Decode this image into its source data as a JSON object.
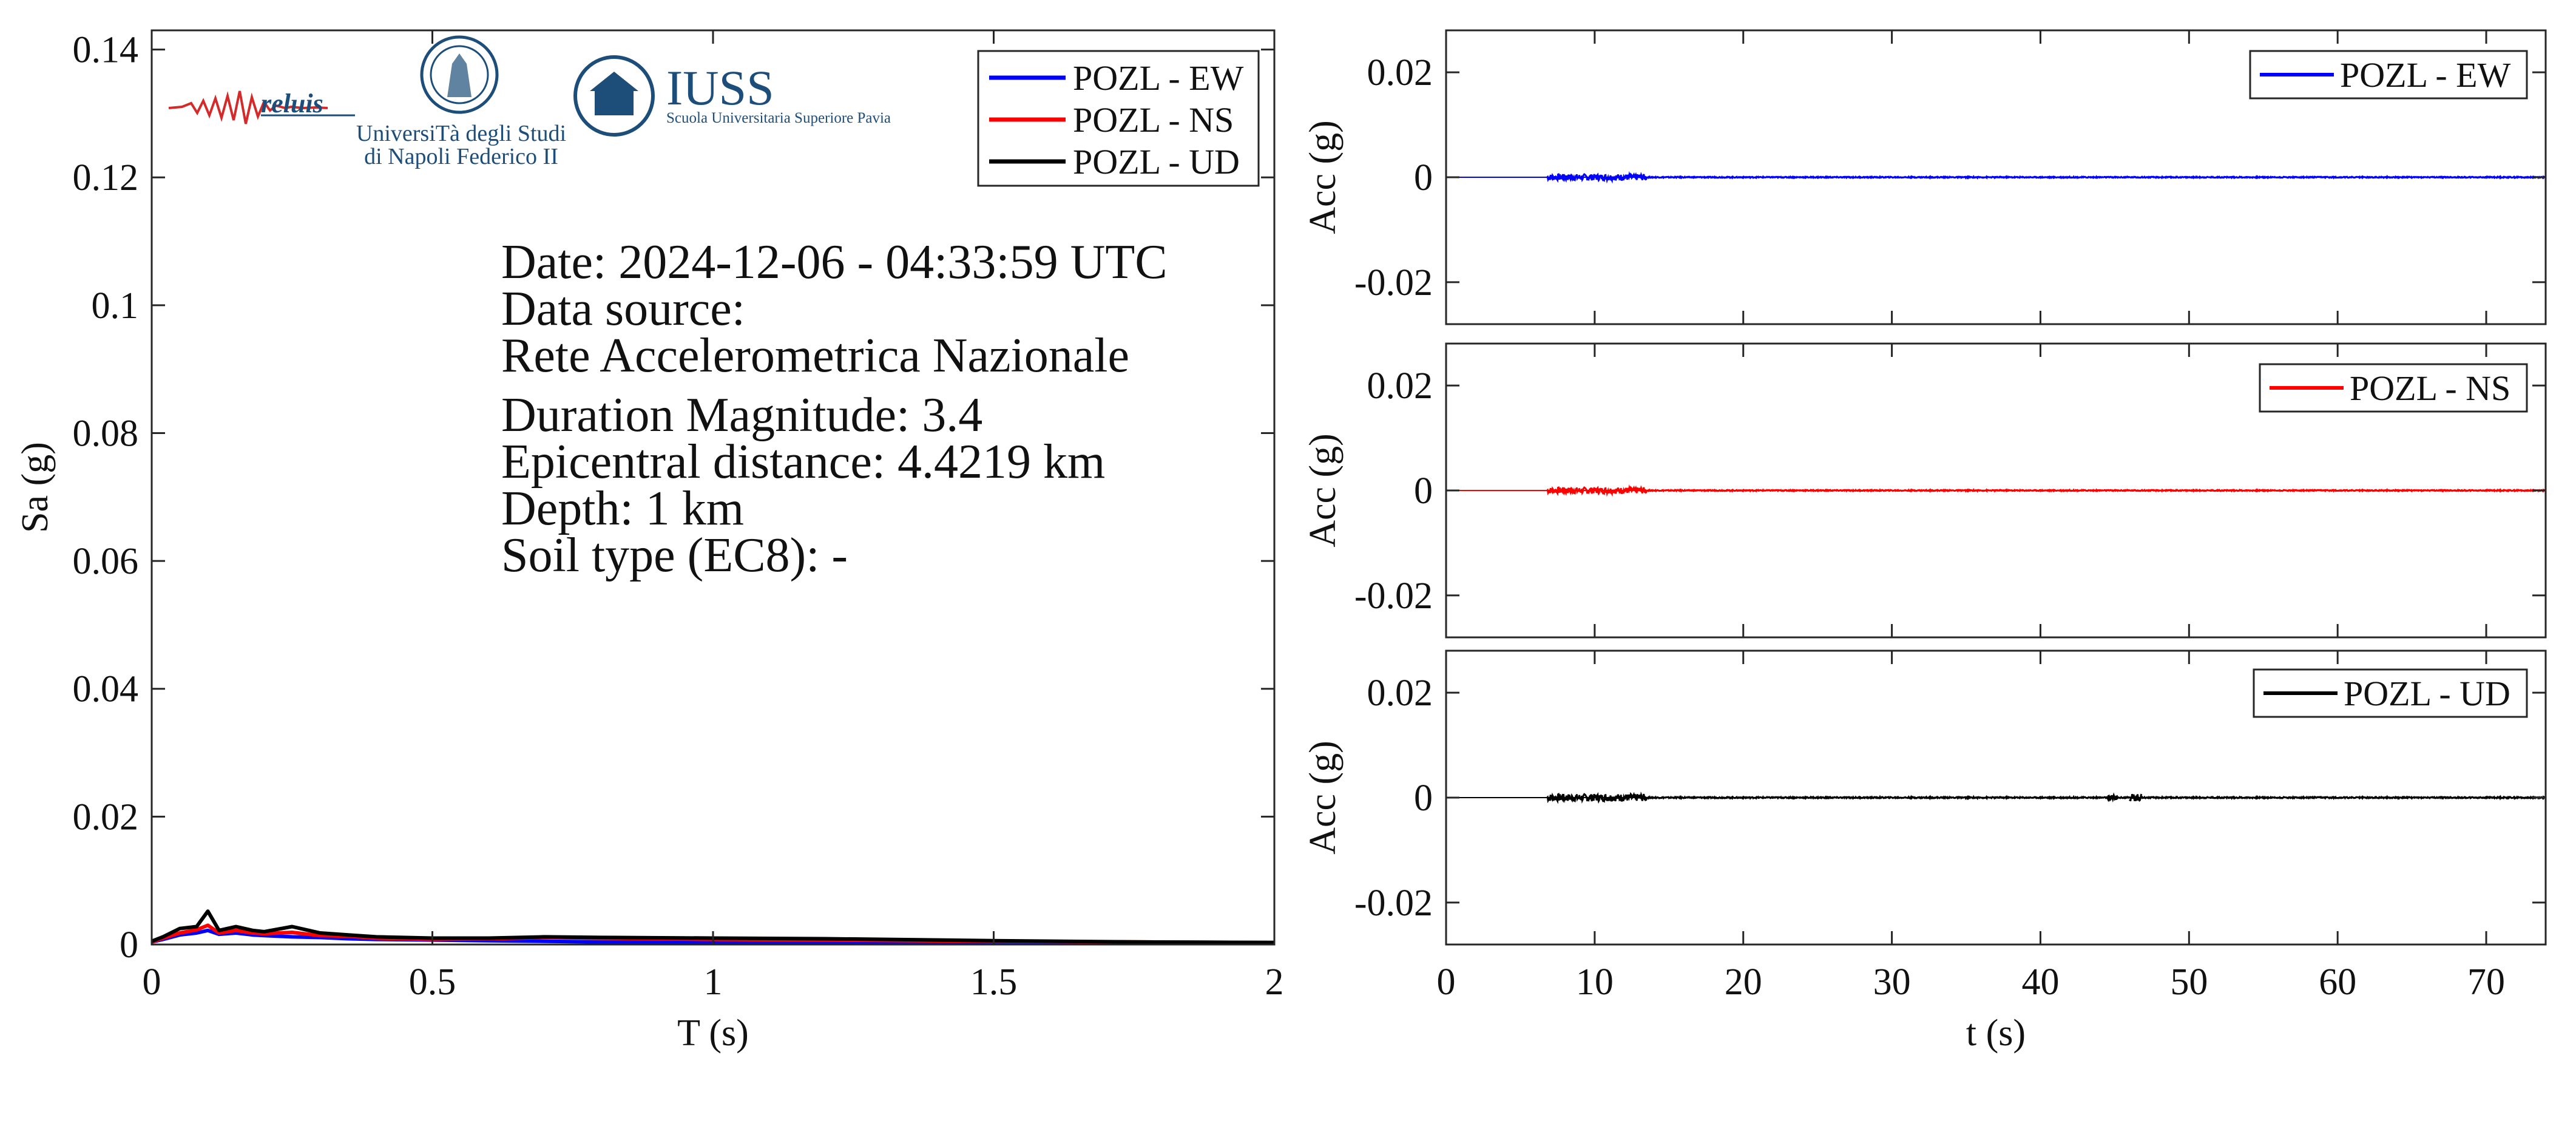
{
  "logos": {
    "reluis": "reluis",
    "unina_line1": "UniversiTà degli Studi",
    "unina_line2": "di Napoli Federico II",
    "iuss_title": "IUSS",
    "iuss_subtitle": "Scuola Universitaria Superiore Pavia"
  },
  "info": {
    "date": "Date: 2024-12-06 - 04:33:59 UTC",
    "source_label": "Data source:",
    "source_value": "Rete Accelerometrica Nazionale",
    "magnitude": "Duration Magnitude: 3.4",
    "distance": "Epicentral distance: 4.4219 km",
    "depth": "Depth: 1 km",
    "soil": "Soil type (EC8): -"
  },
  "colors": {
    "EW": "#0000ff",
    "NS": "#ff0000",
    "UD": "#000000",
    "axis": "#262626"
  },
  "chart_data": [
    {
      "type": "line",
      "xlabel": "T (s)",
      "ylabel": "Sa (g)",
      "xlim": [
        0,
        2
      ],
      "ylim": [
        0,
        0.143
      ],
      "xticks": [
        0,
        0.5,
        1,
        1.5,
        2
      ],
      "xtick_labels": [
        "0",
        "0.5",
        "1",
        "1.5",
        "2"
      ],
      "yticks": [
        0,
        0.02,
        0.04,
        0.06,
        0.08,
        0.1,
        0.12,
        0.14
      ],
      "ytick_labels": [
        "0",
        "0.02",
        "0.04",
        "0.06",
        "0.08",
        "0.1",
        "0.12",
        "0.14"
      ],
      "grid": false,
      "legend_position": "top-right",
      "series": [
        {
          "name": "POZL - EW",
          "color": "#0000ff",
          "x": [
            0,
            0.02,
            0.05,
            0.08,
            0.1,
            0.12,
            0.15,
            0.18,
            0.2,
            0.25,
            0.3,
            0.35,
            0.4,
            0.5,
            0.6,
            0.7,
            0.8,
            1.0,
            1.2,
            1.5,
            1.75,
            2.0
          ],
          "y": [
            0.0004,
            0.0008,
            0.0015,
            0.0018,
            0.0022,
            0.0016,
            0.0018,
            0.0015,
            0.0014,
            0.0012,
            0.0011,
            0.0009,
            0.0008,
            0.0007,
            0.0006,
            0.0005,
            0.0004,
            0.0004,
            0.0003,
            0.0003,
            0.0002,
            0.0002
          ]
        },
        {
          "name": "POZL - NS",
          "color": "#ff0000",
          "x": [
            0,
            0.02,
            0.05,
            0.08,
            0.1,
            0.12,
            0.15,
            0.18,
            0.2,
            0.25,
            0.3,
            0.35,
            0.4,
            0.5,
            0.6,
            0.7,
            0.8,
            1.0,
            1.2,
            1.5,
            1.75,
            2.0
          ],
          "y": [
            0.0004,
            0.001,
            0.0018,
            0.0023,
            0.003,
            0.0018,
            0.0022,
            0.0018,
            0.0017,
            0.0019,
            0.0014,
            0.0013,
            0.001,
            0.0008,
            0.0009,
            0.0011,
            0.001,
            0.0008,
            0.0007,
            0.0005,
            0.0004,
            0.0003
          ]
        },
        {
          "name": "POZL - UD",
          "color": "#000000",
          "x": [
            0,
            0.02,
            0.05,
            0.08,
            0.1,
            0.12,
            0.15,
            0.18,
            0.2,
            0.25,
            0.3,
            0.35,
            0.4,
            0.5,
            0.6,
            0.7,
            0.8,
            1.0,
            1.2,
            1.5,
            1.75,
            2.0
          ],
          "y": [
            0.0005,
            0.0012,
            0.0025,
            0.0028,
            0.0052,
            0.0022,
            0.0028,
            0.0022,
            0.002,
            0.0028,
            0.0018,
            0.0015,
            0.0012,
            0.001,
            0.001,
            0.0012,
            0.0011,
            0.001,
            0.0009,
            0.0006,
            0.0004,
            0.0003
          ]
        }
      ]
    },
    {
      "type": "line",
      "xlabel": "",
      "ylabel": "Acc (g)",
      "xlim": [
        0,
        74
      ],
      "ylim": [
        -0.028,
        0.028
      ],
      "yticks": [
        -0.02,
        0,
        0.02
      ],
      "ytick_labels": [
        "-0.02",
        "0",
        "0.02"
      ],
      "grid": false,
      "legend_position": "top-right",
      "series": [
        {
          "name": "POZL - EW",
          "color": "#0000ff",
          "bursts": [
            {
              "t_start": 6.8,
              "t_end": 13.5,
              "amplitude": 0.0006
            },
            {
              "t_start": 13.5,
              "t_end": 74,
              "amplitude": 0.0001
            }
          ]
        }
      ]
    },
    {
      "type": "line",
      "xlabel": "",
      "ylabel": "Acc (g)",
      "xlim": [
        0,
        74
      ],
      "ylim": [
        -0.028,
        0.028
      ],
      "yticks": [
        -0.02,
        0,
        0.02
      ],
      "ytick_labels": [
        "-0.02",
        "0",
        "0.02"
      ],
      "grid": false,
      "legend_position": "top-right",
      "series": [
        {
          "name": "POZL - NS",
          "color": "#ff0000",
          "bursts": [
            {
              "t_start": 6.8,
              "t_end": 13.5,
              "amplitude": 0.0006
            },
            {
              "t_start": 13.5,
              "t_end": 74,
              "amplitude": 0.0001
            }
          ]
        }
      ]
    },
    {
      "type": "line",
      "xlabel": "t (s)",
      "ylabel": "Acc (g)",
      "xlim": [
        0,
        74
      ],
      "ylim": [
        -0.028,
        0.028
      ],
      "xticks": [
        0,
        10,
        20,
        30,
        40,
        50,
        60,
        70
      ],
      "xtick_labels": [
        "0",
        "10",
        "20",
        "30",
        "40",
        "50",
        "60",
        "70"
      ],
      "yticks": [
        -0.02,
        0,
        0.02
      ],
      "ytick_labels": [
        "-0.02",
        "0",
        "0.02"
      ],
      "grid": false,
      "legend_position": "top-right",
      "series": [
        {
          "name": "POZL - UD",
          "color": "#000000",
          "bursts": [
            {
              "t_start": 6.8,
              "t_end": 13.5,
              "amplitude": 0.0007
            },
            {
              "t_start": 13.5,
              "t_end": 74,
              "amplitude": 0.00012
            },
            {
              "t_start": 44.5,
              "t_end": 45.2,
              "amplitude": 0.0005
            },
            {
              "t_start": 46.0,
              "t_end": 46.8,
              "amplitude": 0.0007
            }
          ]
        }
      ]
    }
  ]
}
